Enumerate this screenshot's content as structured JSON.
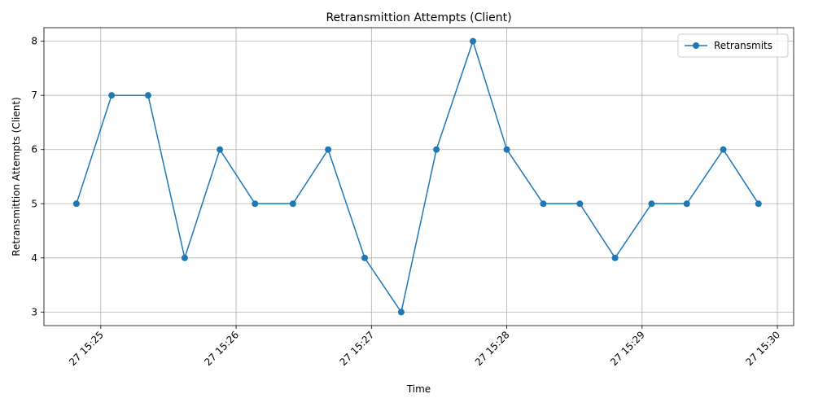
{
  "chart_data": {
    "type": "line",
    "title": "Retransmittion Attempts (Client)",
    "xlabel": "Time",
    "ylabel": "Retransmittion Attempts (Client)",
    "grid": true,
    "legend_position": "top-right",
    "series": [
      {
        "name": "Retransmits",
        "color": "#1f77b4",
        "marker": "circle",
        "x": [
          -0.18,
          0.08,
          0.35,
          0.62,
          0.88,
          1.14,
          1.42,
          1.68,
          1.95,
          2.22,
          2.48,
          2.75,
          3.0,
          3.27,
          3.54,
          3.8,
          4.07,
          4.33,
          4.6,
          4.86
        ],
        "values": [
          5,
          7,
          7,
          4,
          6,
          5,
          5,
          6,
          4,
          3,
          6,
          8,
          6,
          5,
          5,
          4,
          5,
          5,
          6,
          5
        ]
      }
    ],
    "x_ticks": [
      {
        "value": 0,
        "label": "27 15:25"
      },
      {
        "value": 1,
        "label": "27 15:26"
      },
      {
        "value": 2,
        "label": "27 15:27"
      },
      {
        "value": 3,
        "label": "27 15:28"
      },
      {
        "value": 4,
        "label": "27 15:29"
      },
      {
        "value": 5,
        "label": "27 15:30"
      }
    ],
    "y_ticks": [
      3,
      4,
      5,
      6,
      7,
      8
    ],
    "xlim": [
      -0.42,
      5.12
    ],
    "ylim": [
      2.75,
      8.25
    ]
  }
}
